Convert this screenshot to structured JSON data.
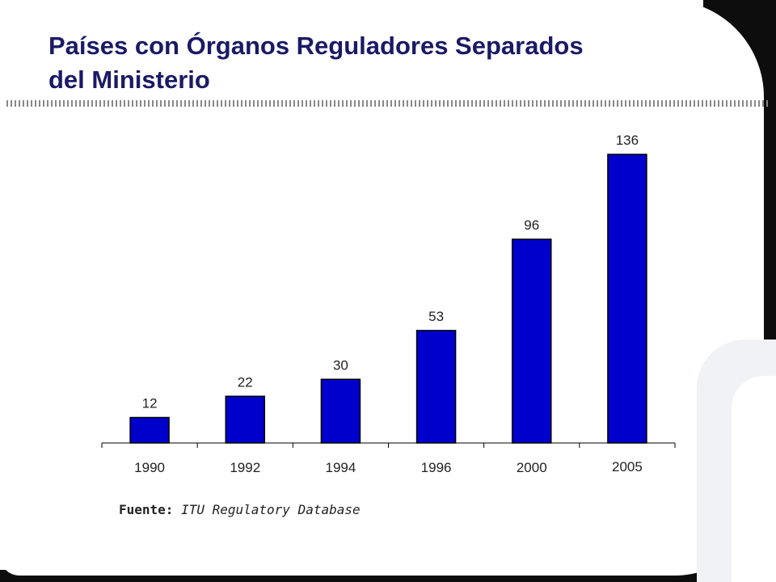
{
  "slide": {
    "title_line1": "Países con Órganos Reguladores Separados",
    "title_line2": "del Ministerio",
    "source_label": "Fuente:",
    "source_text": "ITU Regulatory Database",
    "title_color": "#1a1a66"
  },
  "chart_data": {
    "type": "bar",
    "title": "Países con Órganos Reguladores Separados del Ministerio",
    "categories": [
      "1990",
      "1992",
      "1994",
      "1996",
      "2000",
      "2005"
    ],
    "values": [
      12,
      22,
      30,
      53,
      96,
      136
    ],
    "xlabel": "",
    "ylabel": "",
    "ylim": [
      0,
      150
    ],
    "grid": false,
    "legend": "none",
    "bar_color": "#0000cc",
    "data_labels": true
  }
}
